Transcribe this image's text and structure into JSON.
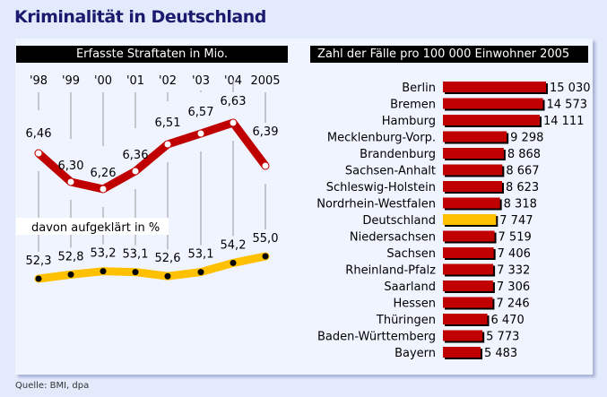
{
  "title": "Kriminalität in Deutschland",
  "source": "Quelle: BMI, dpa",
  "colors": {
    "red": "#c00000",
    "yellow": "#ffc000",
    "header_bg": "#000000",
    "title": "#1a1a6e"
  },
  "chart_data": [
    {
      "type": "line",
      "title": "Erfasste Straftaten in Mio.",
      "categories": [
        "'98",
        "'99",
        "'00",
        "'01",
        "'02",
        "'03",
        "'04",
        "2005"
      ],
      "series": [
        {
          "name": "Erfasste Straftaten in Mio.",
          "values": [
            6.46,
            6.3,
            6.26,
            6.36,
            6.51,
            6.57,
            6.63,
            6.39
          ],
          "labels": [
            "6,46",
            "6,30",
            "6,26",
            "6,36",
            "6,51",
            "6,57",
            "6,63",
            "6,39"
          ]
        },
        {
          "name": "davon aufgeklärt in %",
          "values": [
            52.3,
            52.8,
            53.2,
            53.1,
            52.6,
            53.1,
            54.2,
            55.0
          ],
          "labels": [
            "52,3",
            "52,8",
            "53,2",
            "53,1",
            "52,6",
            "53,1",
            "54,2",
            "55,0"
          ]
        }
      ],
      "subtitle": "davon aufgeklärt in %"
    },
    {
      "type": "bar",
      "title": "Zahl der Fälle pro 100 000 Einwohner 2005",
      "categories": [
        "Berlin",
        "Bremen",
        "Hamburg",
        "Mecklenburg-Vorp.",
        "Brandenburg",
        "Sachsen-Anhalt",
        "Schleswig-Holstein",
        "Nordrhein-Westfalen",
        "Deutschland",
        "Niedersachsen",
        "Sachsen",
        "Rheinland-Pfalz",
        "Saarland",
        "Hessen",
        "Thüringen",
        "Baden-Württemberg",
        "Bayern"
      ],
      "values": [
        15030,
        14573,
        14111,
        9298,
        8868,
        8667,
        8623,
        8318,
        7747,
        7519,
        7406,
        7332,
        7306,
        7246,
        6470,
        5773,
        5483
      ],
      "labels": [
        "15 030",
        "14 573",
        "14 111",
        "9 298",
        "8 868",
        "8 667",
        "8 623",
        "8 318",
        "7 747",
        "7 519",
        "7 406",
        "7 332",
        "7 306",
        "7 246",
        "6 470",
        "5 773",
        "5 483"
      ],
      "highlight": "Deutschland"
    }
  ]
}
